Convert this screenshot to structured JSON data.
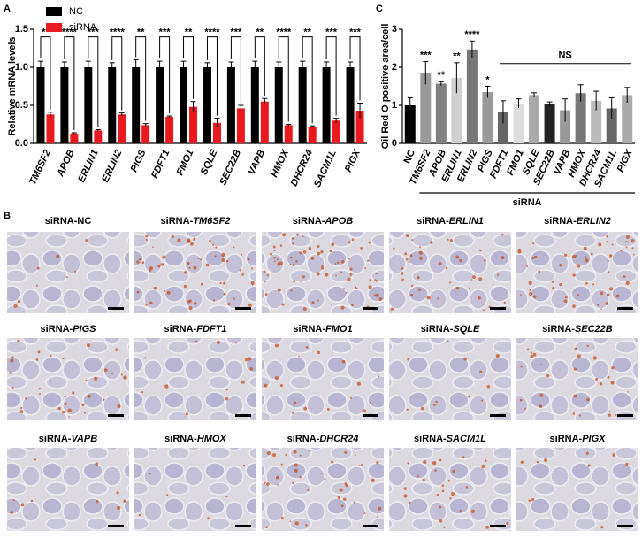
{
  "panel_labels": [
    "A",
    "B",
    "C"
  ],
  "chart_data": [
    {
      "type": "grouped-bar",
      "ylabel": "Relative mRNA levels",
      "categories": [
        "TM6SF2",
        "APOB",
        "ERLIN1",
        "ERLIN2",
        "PIGS",
        "FDFT1",
        "FMO1",
        "SQLE",
        "SEC22B",
        "VAPB",
        "HMOX",
        "DHCR24",
        "SACM1L",
        "PIGX"
      ],
      "series": [
        {
          "name": "NC",
          "color": "#000000",
          "values": [
            1,
            1,
            1,
            1,
            1,
            1,
            1,
            1,
            1,
            1,
            1,
            1,
            1,
            1
          ],
          "errors": [
            0.08,
            0.07,
            0.08,
            0.06,
            0.1,
            0.08,
            0.08,
            0.06,
            0.07,
            0.08,
            0.07,
            0.08,
            0.07,
            0.07
          ]
        },
        {
          "name": "siRNA",
          "color": "#e8191f",
          "values": [
            0.38,
            0.13,
            0.17,
            0.38,
            0.24,
            0.35,
            0.48,
            0.27,
            0.46,
            0.55,
            0.24,
            0.22,
            0.3,
            0.43
          ],
          "errors": [
            0.03,
            0.01,
            0.01,
            0.02,
            0.02,
            0.01,
            0.07,
            0.06,
            0.04,
            0.04,
            0.01,
            0.01,
            0.03,
            0.1
          ]
        }
      ],
      "annotations": [
        "**",
        "****",
        "***",
        "****",
        "**",
        "***",
        "**",
        "****",
        "***",
        "**",
        "****",
        "**",
        "***",
        "***"
      ],
      "ylim": [
        0,
        1.5
      ],
      "yticks": [
        {
          "value": 0,
          "label": "0.0"
        },
        0.5,
        {
          "value": 1,
          "label": "1.0"
        },
        1.5
      ],
      "legend": "top-left"
    },
    {
      "type": "bar",
      "ylabel": "Oil Red O positive area/cell",
      "xlabel": "siRNA",
      "categories": [
        "NC",
        "TM6SF2",
        "APOB",
        "ERLIN1",
        "ERLIN2",
        "PIGS",
        "FDFT1",
        "FMO1",
        "SQLE",
        "SEC22B",
        "VAPB",
        "HMOX",
        "DHCR24",
        "SACM1L",
        "PIGX"
      ],
      "values": [
        1,
        1.85,
        1.57,
        1.72,
        2.47,
        1.35,
        0.82,
        1.05,
        1.27,
        1.03,
        0.87,
        1.32,
        1.12,
        0.92,
        1.27
      ],
      "errors": [
        0.2,
        0.3,
        0.05,
        0.4,
        0.22,
        0.15,
        0.3,
        0.12,
        0.06,
        0.06,
        0.3,
        0.22,
        0.25,
        0.28,
        0.2
      ],
      "colors": [
        "#000000",
        "#9a9a9a",
        "#808080",
        "#d0d0d0",
        "#777777",
        "#9a9a9a",
        "#666666",
        "#dddddd",
        "#aaaaaa",
        "#222222",
        "#9a9a9a",
        "#777777",
        "#bbbbbb",
        "#666666",
        "#aaaaaa"
      ],
      "annotations": [
        null,
        "***",
        "**",
        "**",
        "****",
        "*",
        null,
        null,
        null,
        null,
        null,
        null,
        null,
        null,
        null
      ],
      "group_annotation": "NS",
      "ylim": [
        0,
        3
      ],
      "yticks": [
        0,
        1,
        2,
        3
      ]
    }
  ],
  "micrographs": [
    {
      "label": "siRNA-NC"
    },
    {
      "prefix": "siRNA-",
      "gene": "TM6SF2"
    },
    {
      "prefix": "siRNA-",
      "gene": "APOB"
    },
    {
      "prefix": "siRNA-",
      "gene": "ERLIN1"
    },
    {
      "prefix": "siRNA-",
      "gene": "ERLIN2"
    },
    {
      "prefix": "siRNA-",
      "gene": "PIGS"
    },
    {
      "prefix": "siRNA-",
      "gene": "FDFT1"
    },
    {
      "prefix": "siRNA-",
      "gene": "FMO1"
    },
    {
      "prefix": "siRNA-",
      "gene": "SQLE"
    },
    {
      "prefix": "siRNA-",
      "gene": "SEC22B"
    },
    {
      "prefix": "siRNA-",
      "gene": "VAPB"
    },
    {
      "prefix": "siRNA-",
      "gene": "HMOX"
    },
    {
      "prefix": "siRNA-",
      "gene": "DHCR24"
    },
    {
      "prefix": "siRNA-",
      "gene": "SACM1L"
    },
    {
      "prefix": "siRNA-",
      "gene": "PIGX"
    }
  ]
}
